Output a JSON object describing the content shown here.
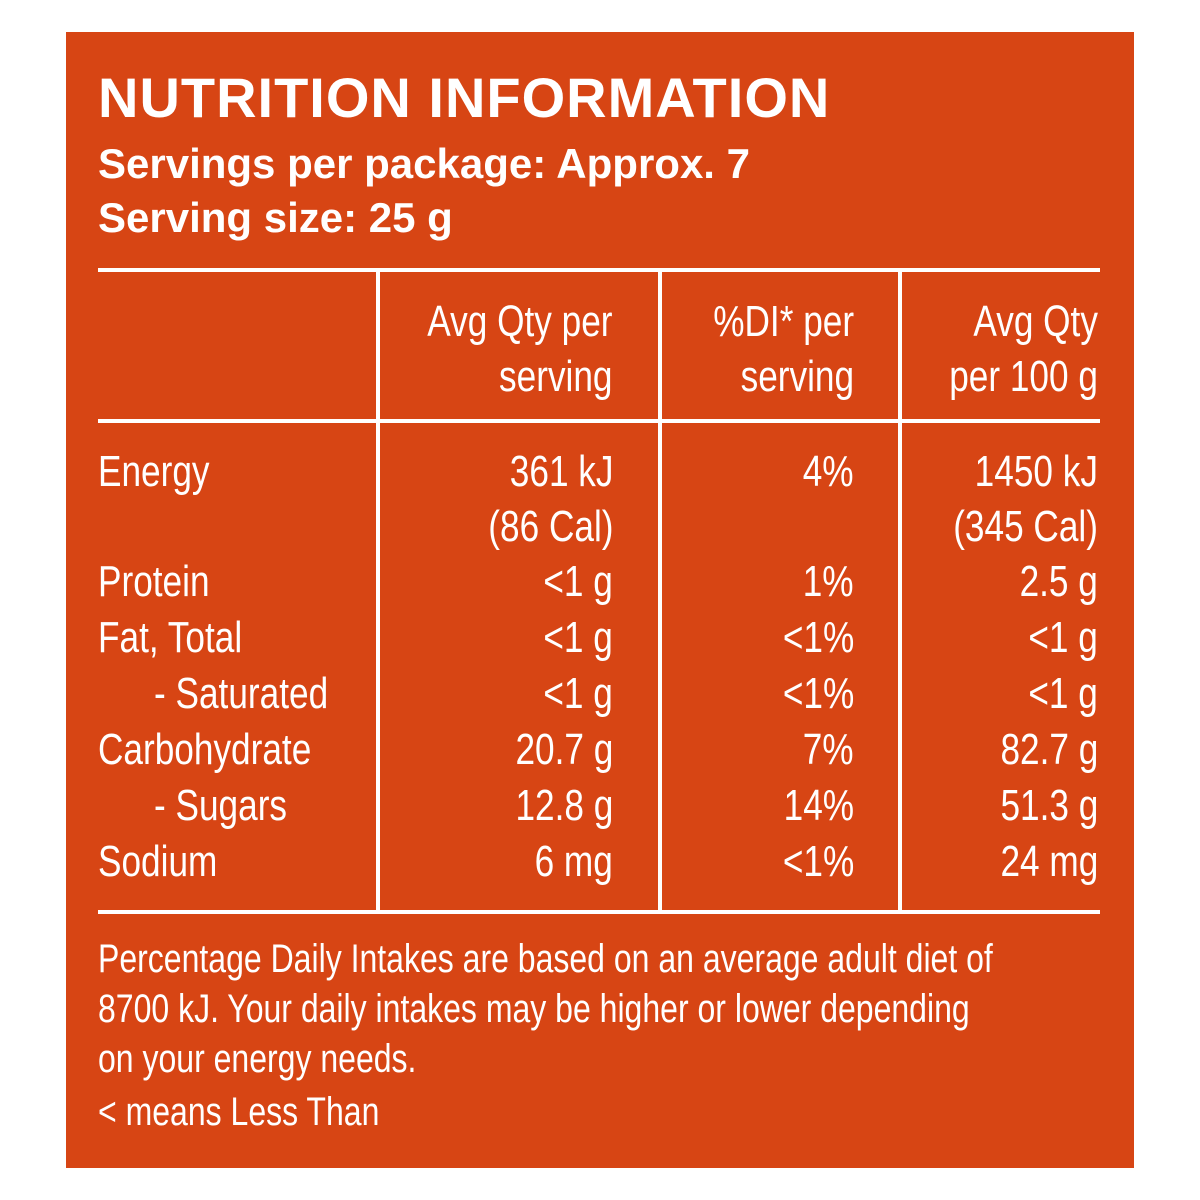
{
  "title": "NUTRITION INFORMATION",
  "servings_per_package": "Servings per package: Approx. 7",
  "serving_size": "Serving size: 25 g",
  "columns": {
    "per_serving": [
      "Avg Qty per",
      "serving"
    ],
    "di_per_serving": [
      "%DI* per",
      "serving"
    ],
    "per_100g": [
      "Avg Qty",
      "per 100 g"
    ]
  },
  "rows": [
    {
      "label": "Energy",
      "per_serving": [
        "361 kJ",
        "(86 Cal)"
      ],
      "di": "4%",
      "per_100g": [
        "1450 kJ",
        "(345 Cal)"
      ]
    },
    {
      "label": "Protein",
      "per_serving": "<1 g",
      "di": "1%",
      "per_100g": "2.5 g"
    },
    {
      "label": "Fat, Total",
      "per_serving": "<1 g",
      "di": "<1%",
      "per_100g": "<1 g"
    },
    {
      "label": "- Saturated",
      "per_serving": "<1 g",
      "di": "<1%",
      "per_100g": "<1 g"
    },
    {
      "label": "Carbohydrate",
      "per_serving": "20.7 g",
      "di": "7%",
      "per_100g": "82.7 g"
    },
    {
      "label": "- Sugars",
      "per_serving": "12.8 g",
      "di": "14%",
      "per_100g": "51.3 g"
    },
    {
      "label": "Sodium",
      "per_serving": "6 mg",
      "di": "<1%",
      "per_100g": "24 mg"
    }
  ],
  "footnote": [
    "Percentage Daily Intakes are based on an average adult diet of",
    "8700 kJ. Your daily intakes may be higher or lower depending",
    "on your energy needs."
  ],
  "less_than_note": "< means Less Than",
  "colors": {
    "background": "#d74514",
    "text": "#ffffff"
  }
}
